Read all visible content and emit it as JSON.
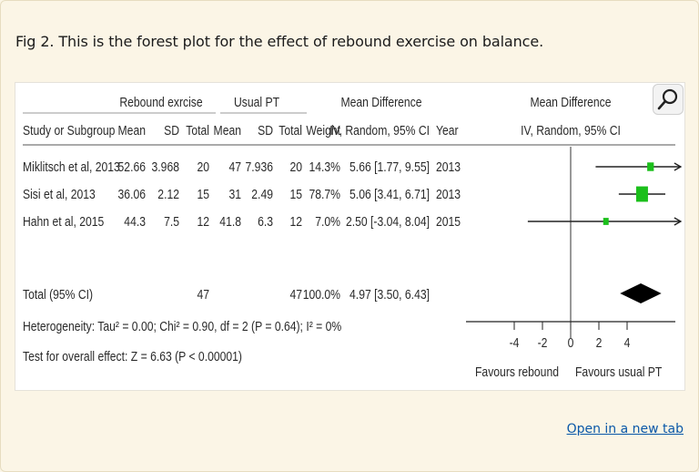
{
  "caption": "Fig 2. This is the forest plot for the effect of rebound exercise on balance.",
  "open_link": "Open in a new tab",
  "magnifier_icon": "magnifier-icon",
  "chart_data": {
    "type": "forest",
    "group_headers": {
      "experimental": "Rebound exrcise",
      "control": "Usual PT",
      "effect": "Mean Difference",
      "plot": "Mean Difference"
    },
    "columns": {
      "study": "Study or Subgroup",
      "mean1": "Mean",
      "sd1": "SD",
      "total1": "Total",
      "mean2": "Mean",
      "sd2": "SD",
      "total2": "Total",
      "weight": "Weight",
      "ci": "IV, Random, 95% CI",
      "year": "Year",
      "plot_ci": "IV, Random, 95% CI"
    },
    "studies": [
      {
        "name": "Miklitsch et al, 2013",
        "mean1": "52.66",
        "sd1": "3.968",
        "total1": "20",
        "mean2": "47",
        "sd2": "7.936",
        "total2": "20",
        "weight": "14.3%",
        "ci": "5.66 [1.77, 9.55]",
        "year": "2013",
        "md": 5.66,
        "lo": 1.77,
        "hi": 9.55,
        "w": 14.3
      },
      {
        "name": "Sisi et al, 2013",
        "mean1": "36.06",
        "sd1": "2.12",
        "total1": "15",
        "mean2": "31",
        "sd2": "2.49",
        "total2": "15",
        "weight": "78.7%",
        "ci": "5.06 [3.41, 6.71]",
        "year": "2013",
        "md": 5.06,
        "lo": 3.41,
        "hi": 6.71,
        "w": 78.7
      },
      {
        "name": "Hahn et al, 2015",
        "mean1": "44.3",
        "sd1": "7.5",
        "total1": "12",
        "mean2": "41.8",
        "sd2": "6.3",
        "total2": "12",
        "weight": "7.0%",
        "ci": "2.50 [-3.04, 8.04]",
        "year": "2015",
        "md": 2.5,
        "lo": -3.04,
        "hi": 8.04,
        "w": 7.0
      }
    ],
    "total": {
      "label": "Total (95% CI)",
      "total1": "47",
      "total2": "47",
      "weight": "100.0%",
      "ci": "4.97 [3.50, 6.43]",
      "md": 4.97,
      "lo": 3.5,
      "hi": 6.43
    },
    "heterogeneity": "Heterogeneity: Tau² = 0.00; Chi² = 0.90, df = 2 (P = 0.64); I² = 0%",
    "overall_effect": "Test for overall effect: Z = 6.63 (P < 0.00001)",
    "axis": {
      "ticks": [
        -4,
        -2,
        0,
        2,
        4
      ],
      "xlim": [
        -6.8,
        7.8
      ]
    },
    "favours_left": "Favours rebound",
    "favours_right": "Favours usual PT",
    "colors": {
      "study_marker": "#1bbf1b",
      "summary": "#000000"
    }
  }
}
